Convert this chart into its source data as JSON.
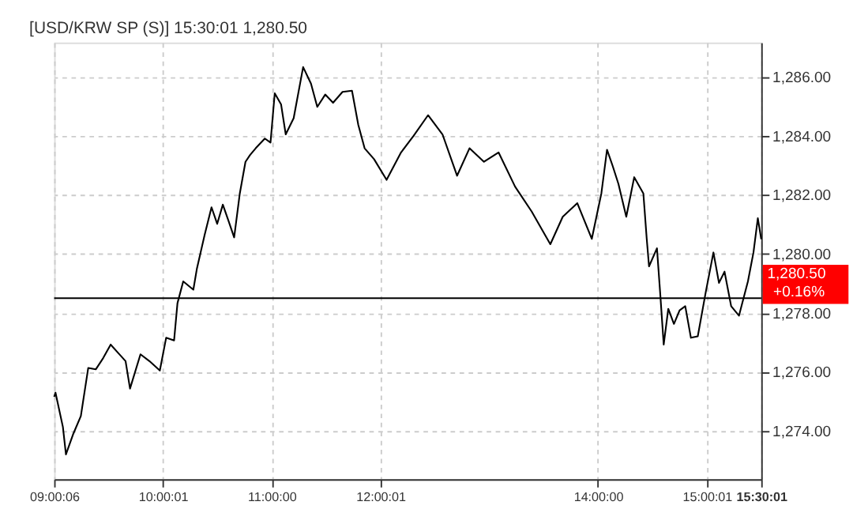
{
  "chart_data": {
    "type": "line",
    "title": "[USD/KRW SP (S)] 15:30:01   1,280.50",
    "x": [
      9.0017,
      9.014,
      9.082,
      9.11,
      9.178,
      9.247,
      9.315,
      9.384,
      9.452,
      9.521,
      9.589,
      9.658,
      9.699,
      9.795,
      9.877,
      9.973,
      10.031,
      10.104,
      10.135,
      10.188,
      10.281,
      10.313,
      10.385,
      10.448,
      10.5,
      10.552,
      10.604,
      10.656,
      10.708,
      10.76,
      10.802,
      10.854,
      10.938,
      10.99,
      11.029,
      11.087,
      11.13,
      11.203,
      11.29,
      11.362,
      11.42,
      11.493,
      11.565,
      11.652,
      11.739,
      11.797,
      11.855,
      11.942,
      12.057,
      12.19,
      12.305,
      12.438,
      12.571,
      12.705,
      12.819,
      12.952,
      13.086,
      13.238,
      13.39,
      13.562,
      13.676,
      13.81,
      13.943,
      14.031,
      14.083,
      14.135,
      14.188,
      14.26,
      14.333,
      14.417,
      14.448,
      14.469,
      14.542,
      14.573,
      14.604,
      14.646,
      14.698,
      14.75,
      14.802,
      14.854,
      14.917,
      14.99,
      15.061,
      15.112,
      15.163,
      15.224,
      15.296,
      15.378,
      15.429,
      15.469,
      15.5003
    ],
    "series": [
      {
        "color": "#000000",
        "values": [
          1275.16,
          1275.3,
          1274.14,
          1273.21,
          1273.91,
          1274.51,
          1276.14,
          1276.09,
          1276.47,
          1276.93,
          1276.65,
          1276.37,
          1275.44,
          1276.6,
          1276.37,
          1276.05,
          1277.16,
          1277.07,
          1278.33,
          1279.07,
          1278.79,
          1279.49,
          1280.65,
          1281.58,
          1281.02,
          1281.67,
          1281.12,
          1280.56,
          1282.05,
          1283.12,
          1283.35,
          1283.58,
          1283.91,
          1283.77,
          1285.44,
          1285.07,
          1284.05,
          1284.6,
          1286.33,
          1285.77,
          1284.98,
          1285.4,
          1285.12,
          1285.49,
          1285.53,
          1284.37,
          1283.58,
          1283.21,
          1282.51,
          1283.44,
          1284.0,
          1284.7,
          1284.05,
          1282.65,
          1283.58,
          1283.12,
          1283.44,
          1282.28,
          1281.44,
          1280.33,
          1281.26,
          1281.72,
          1280.51,
          1282.05,
          1283.53,
          1282.98,
          1282.37,
          1281.26,
          1282.6,
          1282.05,
          1280.51,
          1279.58,
          1280.19,
          1278.6,
          1276.93,
          1278.14,
          1277.63,
          1278.09,
          1278.23,
          1277.16,
          1277.21,
          1278.7,
          1280.05,
          1279.02,
          1279.4,
          1278.23,
          1277.91,
          1279.07,
          1280.05,
          1281.21,
          1280.5
        ]
      }
    ],
    "xlim": [
      9.0017,
      15.5003
    ],
    "xticks": [
      {
        "value": 9.0017,
        "label": "09:00:06"
      },
      {
        "value": 10.0003,
        "label": "10:00:01"
      },
      {
        "value": 11,
        "label": "11:00:00"
      },
      {
        "value": 12.0003,
        "label": "12:00:01"
      },
      {
        "value": 14,
        "label": "14:00:00"
      },
      {
        "value": 15.0003,
        "label": "15:00:01"
      },
      {
        "value": 15.5003,
        "label": "15:30:01"
      }
    ],
    "ylim": [
      1272.37,
      1287.16
    ],
    "yticks": [
      {
        "value": 1274,
        "label": "1,274.00"
      },
      {
        "value": 1276,
        "label": "1,276.00"
      },
      {
        "value": 1278,
        "label": "1,278.00"
      },
      {
        "value": 1280,
        "label": "1,280.00"
      },
      {
        "value": 1282,
        "label": "1,282.00"
      },
      {
        "value": 1284,
        "label": "1,284.00"
      },
      {
        "value": 1286,
        "label": "1,286.00"
      }
    ],
    "ref_lines": [
      {
        "axis": "y",
        "value": 1278.5,
        "color": "#000000"
      }
    ],
    "annotations": [
      {
        "text": "1,280.50",
        "x": 15.5003,
        "y": 1280.5
      },
      "+0.16%"
    ],
    "grid": true,
    "legend": false,
    "marker": "none",
    "line_style": "solid"
  }
}
